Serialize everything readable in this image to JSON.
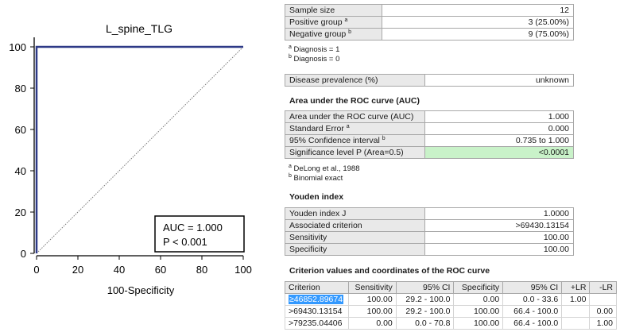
{
  "chart_data": {
    "type": "line",
    "title": "L_spine_TLG",
    "xlabel": "100-Specificity",
    "ylabel": "",
    "xlim": [
      0,
      100
    ],
    "ylim": [
      0,
      100
    ],
    "x_ticks": [
      "0",
      "20",
      "40",
      "60",
      "80",
      "100"
    ],
    "y_ticks": [
      "0",
      "20",
      "40",
      "60",
      "80",
      "100"
    ],
    "grid": false,
    "series": [
      {
        "name": "",
        "points": [
          [
            0,
            0
          ],
          [
            0,
            100
          ],
          [
            100,
            100
          ]
        ],
        "style": "solid",
        "color": "#2e3a87"
      },
      {
        "name": "",
        "points": [
          [
            0,
            0
          ],
          [
            100,
            100
          ]
        ],
        "style": "dotted",
        "color": "#7a7a7a"
      }
    ],
    "annotation": {
      "line1": "AUC = 1.000",
      "line2": "P < 0.001",
      "position": "bottom-right"
    }
  },
  "summary": {
    "rows": [
      {
        "label": "Sample size",
        "sup": "",
        "value": "12"
      },
      {
        "label": "Positive group",
        "sup": "a",
        "value": "3 (25.00%)"
      },
      {
        "label": "Negative group",
        "sup": "b",
        "value": "9 (75.00%)"
      }
    ],
    "footnotes": [
      {
        "sup": "a",
        "text": "Diagnosis = 1"
      },
      {
        "sup": "b",
        "text": "Diagnosis = 0"
      }
    ]
  },
  "prevalence": {
    "label": "Disease prevalence (%)",
    "value": "unknown"
  },
  "auc": {
    "heading": "Area under the ROC curve (AUC)",
    "rows": [
      {
        "label": "Area under the ROC curve (AUC)",
        "sup": "",
        "value": "1.000"
      },
      {
        "label": "Standard Error",
        "sup": "a",
        "value": "0.000"
      },
      {
        "label": "95% Confidence interval",
        "sup": "b",
        "value": "0.735 to 1.000"
      },
      {
        "label": "Significance level P (Area=0.5)",
        "sup": "",
        "value": "<0.0001"
      }
    ],
    "highlight_color": "#c9f2c9",
    "footnotes": [
      {
        "sup": "a",
        "text": "DeLong et al., 1988"
      },
      {
        "sup": "b",
        "text": "Binomial exact"
      }
    ]
  },
  "youden": {
    "heading": "Youden index",
    "rows": [
      {
        "label": "Youden index J",
        "value": "1.0000"
      },
      {
        "label": "Associated criterion",
        "value": ">69430.13154"
      },
      {
        "label": "Sensitivity",
        "value": "100.00"
      },
      {
        "label": "Specificity",
        "value": "100.00"
      }
    ]
  },
  "criterion": {
    "heading": "Criterion values and coordinates of the ROC curve",
    "headers": [
      "Criterion",
      "Sensitivity",
      "95% CI",
      "Specificity",
      "95% CI",
      "+LR",
      "-LR"
    ],
    "rows": [
      [
        "≥46852.89674",
        "100.00",
        "29.2 - 100.0",
        "0.00",
        "0.0 - 33.6",
        "1.00",
        ""
      ],
      [
        ">69430.13154",
        "100.00",
        "29.2 - 100.0",
        "100.00",
        "66.4 - 100.0",
        "",
        "0.00"
      ],
      [
        ">79235.04406",
        "0.00",
        "0.0 - 70.8",
        "100.00",
        "66.4 - 100.0",
        "",
        "1.00"
      ]
    ],
    "selected_color": "#3399ff"
  }
}
